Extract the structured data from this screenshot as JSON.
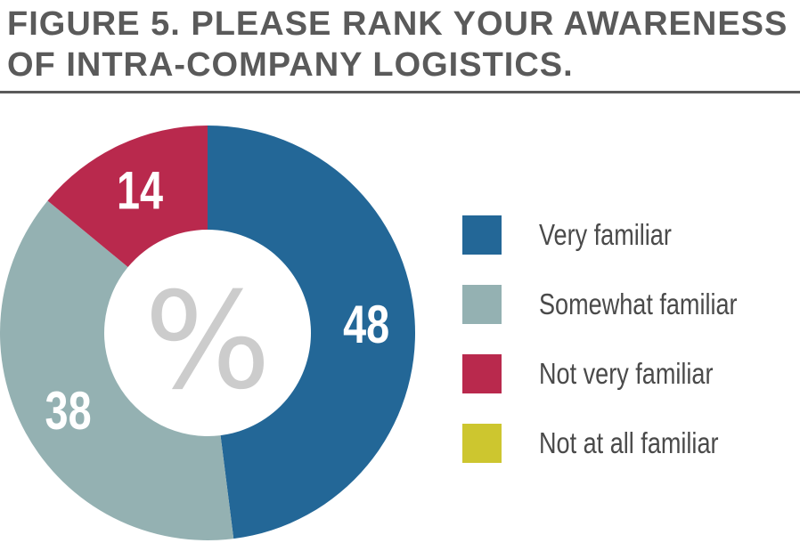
{
  "title_line1": "FIGURE 5. PLEASE RANK YOUR AWARENESS",
  "title_line2": "OF INTRA-COMPANY LOGISTICS.",
  "center_label": "%",
  "chart_data": {
    "type": "pie",
    "style": "donut",
    "categories": [
      "Very familiar",
      "Somewhat familiar",
      "Not very familiar",
      "Not at all familiar"
    ],
    "values": [
      48,
      38,
      14,
      0
    ],
    "data_labels": [
      "48",
      "38",
      "14",
      ""
    ],
    "colors": [
      "#236797",
      "#94b1b2",
      "#b9294d",
      "#cdc62f"
    ],
    "legend_position": "right"
  }
}
